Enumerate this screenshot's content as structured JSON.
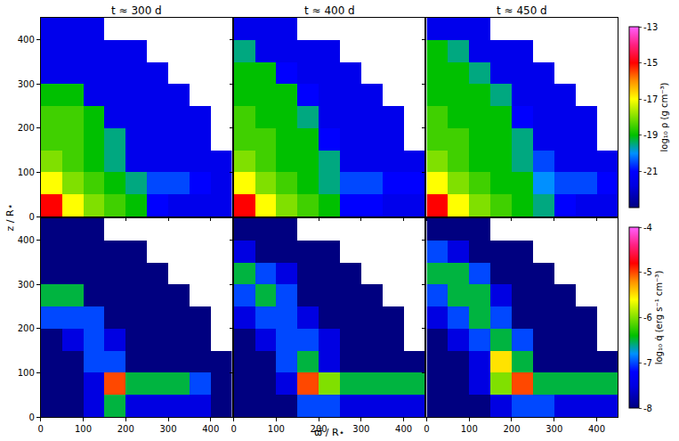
{
  "chart_data": {
    "type": "heatmap",
    "xlabel": "ϖ̃ / R⋆",
    "ylabel": "z / R⋆",
    "xlim": [
      0,
      450
    ],
    "ylim": [
      0,
      450
    ],
    "xticks": [
      0,
      100,
      200,
      300,
      400
    ],
    "yticks": [
      0,
      100,
      200,
      300,
      400
    ],
    "x": [
      25,
      75,
      125,
      175,
      225,
      275,
      325,
      375,
      425
    ],
    "y": [
      25,
      75,
      125,
      175,
      225,
      275,
      325,
      375,
      425
    ],
    "rows": [
      {
        "colorbar": {
          "title": "log₁₀ ρ (g cm⁻³)",
          "range": [
            -23,
            -13
          ],
          "ticks": [
            -13,
            -15,
            -17,
            -19,
            -21
          ]
        },
        "panels": [
          {
            "title": "t ≈ 300 d",
            "z": [
              [
                -15,
                -17,
                -18,
                -18.5,
                -19,
                -21,
                -21.5,
                -21.5,
                -21.5
              ],
              [
                -17,
                -18,
                -18.5,
                -19,
                -19.5,
                -20.5,
                -20.5,
                -21,
                -21.5
              ],
              [
                -18,
                -18.5,
                -19,
                -19.5,
                -21.5,
                -21.5,
                -21.5,
                -21.5,
                -21.5
              ],
              [
                -18.5,
                -18.5,
                -19,
                -19.5,
                -21.5,
                -21.5,
                -21.5,
                -21.5,
                null
              ],
              [
                -18.5,
                -18.5,
                -19,
                -21.5,
                -21.5,
                -21.5,
                -21.5,
                -21.5,
                null
              ],
              [
                -19,
                -19,
                -21.5,
                -21.5,
                -21.5,
                -21.5,
                -21.5,
                null,
                null
              ],
              [
                -21.5,
                -21.5,
                -21.5,
                -21.5,
                -21.5,
                -21.5,
                null,
                null,
                null
              ],
              [
                -21.5,
                -21.5,
                -21.5,
                -21.5,
                -21.5,
                null,
                null,
                null,
                null
              ],
              [
                -21.5,
                -21.5,
                -21.5,
                null,
                null,
                null,
                null,
                null,
                null
              ]
            ]
          },
          {
            "title": "t ≈ 400 d",
            "z": [
              [
                -15,
                -17,
                -18,
                -18.5,
                -19,
                -21,
                -21,
                -21.5,
                -21.5
              ],
              [
                -17,
                -18,
                -18.5,
                -19,
                -19.5,
                -20.5,
                -20.5,
                -21,
                -21
              ],
              [
                -18,
                -18.5,
                -19,
                -19,
                -19.5,
                -21.5,
                -21.5,
                -21.5,
                -21.5
              ],
              [
                -18.5,
                -18.5,
                -19,
                -19,
                -21,
                -21.5,
                -21.5,
                -21.5,
                null
              ],
              [
                -18.5,
                -19,
                -19,
                -19.5,
                -21.5,
                -21.5,
                -21.5,
                -21.5,
                null
              ],
              [
                -19,
                -19,
                -19,
                -21,
                -21.5,
                -21.5,
                -21.5,
                null,
                null
              ],
              [
                -19,
                -19,
                -21,
                -21.5,
                -21.5,
                -21.5,
                null,
                null,
                null
              ],
              [
                -19.5,
                -21.5,
                -21.5,
                -21.5,
                -21.5,
                null,
                null,
                null,
                null
              ],
              [
                -21.5,
                -21.5,
                -21.5,
                null,
                null,
                null,
                null,
                null,
                null
              ]
            ]
          },
          {
            "title": "t ≈ 450 d",
            "z": [
              [
                -15,
                -17,
                -18,
                -18.5,
                -19,
                -19.5,
                -21,
                -21.5,
                -21.5
              ],
              [
                -17,
                -18,
                -18.5,
                -19,
                -19,
                -20,
                -20.5,
                -20.5,
                -21
              ],
              [
                -18,
                -18.5,
                -19,
                -19,
                -19.5,
                -20.5,
                -21.5,
                -21.5,
                -21.5
              ],
              [
                -18.5,
                -18.5,
                -19,
                -19,
                -19.5,
                -21.5,
                -21.5,
                -21.5,
                null
              ],
              [
                -18.5,
                -19,
                -19,
                -19,
                -21,
                -21.5,
                -21.5,
                -21.5,
                null
              ],
              [
                -19,
                -19,
                -19,
                -19.5,
                -21.5,
                -21.5,
                -21.5,
                null,
                null
              ],
              [
                -19,
                -19,
                -19.5,
                -21.5,
                -21.5,
                -21.5,
                null,
                null,
                null
              ],
              [
                -19,
                -19.5,
                -21.5,
                -21.5,
                -21.5,
                null,
                null,
                null,
                null
              ],
              [
                -21.5,
                -21.5,
                -21.5,
                null,
                null,
                null,
                null,
                null,
                null
              ]
            ]
          }
        ]
      },
      {
        "colorbar": {
          "title": "log₁₀ q̇ (erg s⁻¹ cm⁻³)",
          "range": [
            -8,
            -4
          ],
          "ticks": [
            -4,
            -5,
            -6,
            -7,
            -8
          ]
        },
        "panels": [
          {
            "z": [
              [
                -8,
                -8,
                -7.5,
                -6.5,
                -7.5,
                -7.5,
                -7.5,
                -7.5,
                -8
              ],
              [
                -8,
                -8,
                -7.5,
                -5,
                -6.5,
                -6.5,
                -6.5,
                -7,
                -8
              ],
              [
                -8,
                -8,
                -7,
                -7,
                -8,
                -8,
                -8,
                -8,
                -8
              ],
              [
                -8,
                -7.5,
                -7,
                -7.5,
                -8,
                -8,
                -8,
                -8,
                null
              ],
              [
                -7,
                -7,
                -7,
                -8,
                -8,
                -8,
                -8,
                -8,
                null
              ],
              [
                -6.5,
                -6.5,
                -8,
                -8,
                -8,
                -8,
                -8,
                null,
                null
              ],
              [
                -8,
                -8,
                -8,
                -8,
                -8,
                -8,
                null,
                null,
                null
              ],
              [
                -8,
                -8,
                -8,
                -8,
                -8,
                null,
                null,
                null,
                null
              ],
              [
                -8,
                -8,
                -8,
                null,
                null,
                null,
                null,
                null,
                null
              ]
            ]
          },
          {
            "z": [
              [
                -8,
                -8,
                -8,
                -7,
                -7,
                -7.5,
                -7.5,
                -7.5,
                -7.5
              ],
              [
                -8,
                -8,
                -7.5,
                -5,
                -6,
                -6.5,
                -6.5,
                -6.5,
                -6.5
              ],
              [
                -8,
                -8,
                -7,
                -6.5,
                -7.5,
                -8,
                -8,
                -8,
                -8
              ],
              [
                -8,
                -7.5,
                -7,
                -7,
                -7.5,
                -8,
                -8,
                -8,
                null
              ],
              [
                -7.5,
                -7,
                -7,
                -7.5,
                -8,
                -8,
                -8,
                -8,
                null
              ],
              [
                -7,
                -6.5,
                -7,
                -8,
                -8,
                -8,
                -8,
                null,
                null
              ],
              [
                -6.5,
                -7,
                -7.5,
                -8,
                -8,
                -8,
                null,
                null,
                null
              ],
              [
                -7.5,
                -8,
                -8,
                -8,
                -8,
                null,
                null,
                null,
                null
              ],
              [
                -8,
                -8,
                -8,
                null,
                null,
                null,
                null,
                null,
                null
              ]
            ]
          },
          {
            "z": [
              [
                -8,
                -8,
                -8,
                -7.5,
                -7,
                -7,
                -7.5,
                -7.5,
                -7.5
              ],
              [
                -8,
                -8,
                -7.5,
                -6,
                -5,
                -6.5,
                -6.5,
                -6.5,
                -6.5
              ],
              [
                -8,
                -8,
                -7.5,
                -5.5,
                -6.5,
                -8,
                -8,
                -8,
                -8
              ],
              [
                -8,
                -7.5,
                -7,
                -6.5,
                -7,
                -8,
                -8,
                -8,
                null
              ],
              [
                -7.5,
                -7,
                -6.5,
                -7,
                -8,
                -8,
                -8,
                -8,
                null
              ],
              [
                -7,
                -6.5,
                -6.5,
                -7.5,
                -8,
                -8,
                -8,
                null,
                null
              ],
              [
                -6.5,
                -6.5,
                -7,
                -8,
                -8,
                -8,
                null,
                null,
                null
              ],
              [
                -7,
                -7.5,
                -8,
                -8,
                -8,
                null,
                null,
                null,
                null
              ],
              [
                -8,
                -8,
                -8,
                null,
                null,
                null,
                null,
                null,
                null
              ]
            ]
          }
        ]
      }
    ]
  }
}
